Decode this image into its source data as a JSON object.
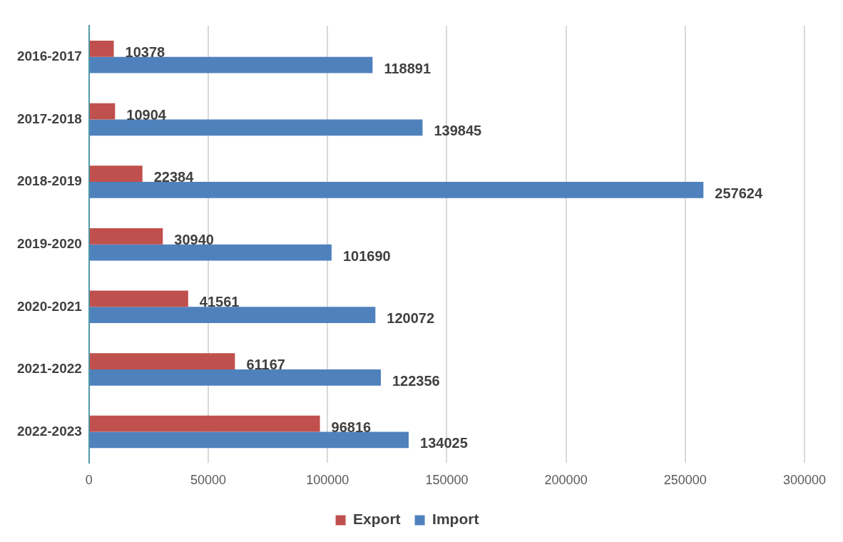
{
  "chart_data": {
    "type": "bar",
    "orientation": "horizontal",
    "categories": [
      "2016-2017",
      "2017-2018",
      "2018-2019",
      "2019-2020",
      "2020-2021",
      "2021-2022",
      "2022-2023"
    ],
    "series": [
      {
        "name": "Export",
        "color": "#c0504d",
        "values": [
          10378,
          10904,
          22384,
          30940,
          41561,
          61167,
          96816
        ]
      },
      {
        "name": "Import",
        "color": "#4f81bd",
        "values": [
          118891,
          139845,
          257624,
          101690,
          120072,
          122356,
          134025
        ]
      }
    ],
    "xlim": [
      0,
      300000
    ],
    "xticks": [
      0,
      50000,
      100000,
      150000,
      200000,
      250000,
      300000
    ],
    "grid": "x",
    "legend": "bottom",
    "data_labels": true
  }
}
